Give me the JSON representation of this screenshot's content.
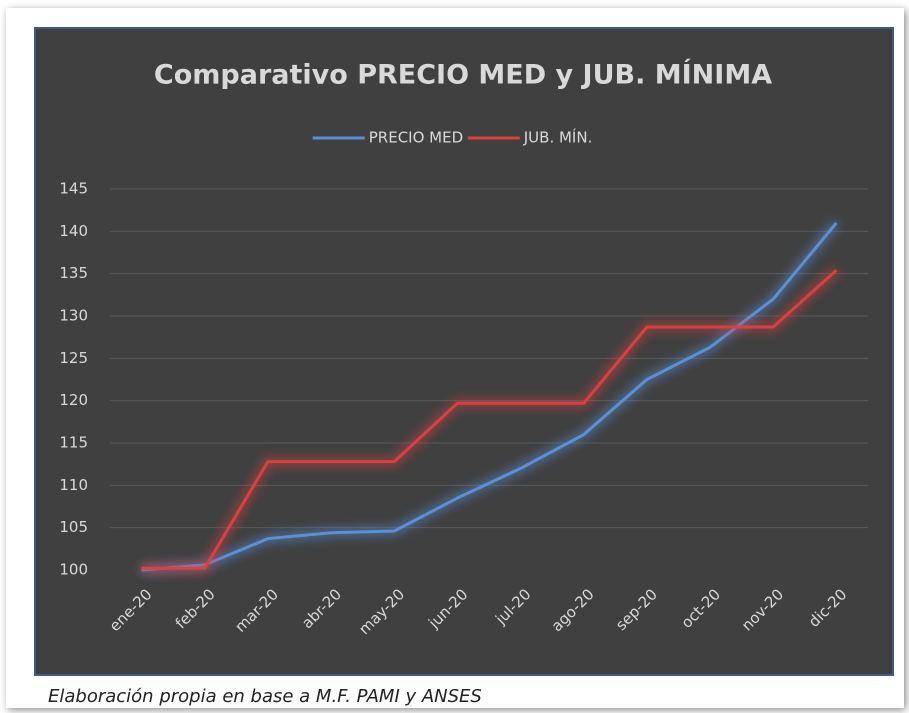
{
  "chart_data": {
    "type": "line",
    "title": "Comparativo PRECIO MED y JUB. MÍNIMA",
    "caption": "Elaboración propia en base a M.F. PAMI y ANSES",
    "categories": [
      "ene-20",
      "feb-20",
      "mar-20",
      "abr-20",
      "may-20",
      "jun-20",
      "jul-20",
      "ago-20",
      "sep-20",
      "oct-20",
      "nov-20",
      "dic-20"
    ],
    "series": [
      {
        "name": "PRECIO MED",
        "color": "#5b8fd6",
        "values": [
          100,
          100.6,
          103.7,
          104.4,
          104.6,
          108.5,
          112,
          116,
          122.5,
          126.3,
          132,
          141
        ]
      },
      {
        "name": "JUB. MÍN.",
        "color": "#d9403f",
        "values": [
          100.2,
          100.2,
          112.8,
          112.8,
          112.8,
          119.7,
          119.7,
          119.7,
          128.7,
          128.7,
          128.7,
          135.4
        ]
      }
    ],
    "ylim": [
      100,
      145
    ],
    "yticks": [
      100,
      105,
      110,
      115,
      120,
      125,
      130,
      135,
      140,
      145
    ],
    "grid": true,
    "legend": "top"
  }
}
